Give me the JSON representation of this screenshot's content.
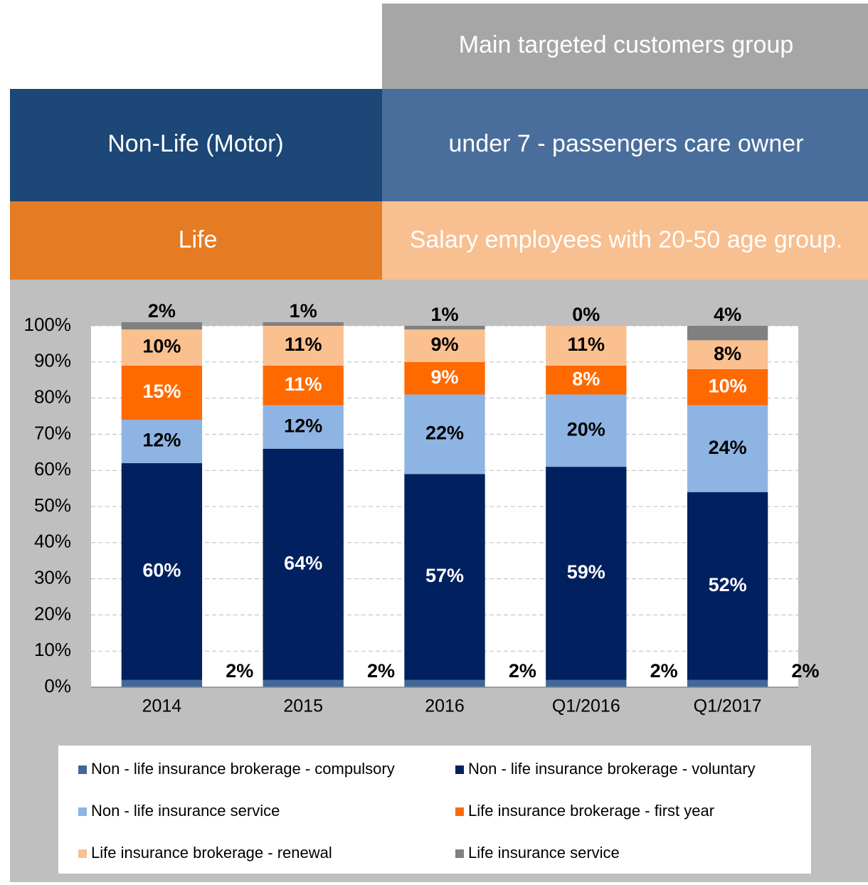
{
  "table": {
    "header": "Main targeted customers group",
    "rows": [
      [
        "Non-Life (Motor)",
        "under 7 - passengers care owner"
      ],
      [
        "Life",
        "Salary employees with 20-50 age group."
      ]
    ]
  },
  "chart_data": {
    "type": "stacked_bar",
    "categories": [
      "2014",
      "2015",
      "2016",
      "Q1/2016",
      "Q1/2017"
    ],
    "ylim": [
      0,
      100
    ],
    "yticks": [
      {
        "value": 0,
        "label": "0%"
      },
      {
        "value": 10,
        "label": "10%"
      },
      {
        "value": 20,
        "label": "20%"
      },
      {
        "value": 30,
        "label": "30%"
      },
      {
        "value": 40,
        "label": "40%"
      },
      {
        "value": 50,
        "label": "50%"
      },
      {
        "value": 60,
        "label": "60%"
      },
      {
        "value": 70,
        "label": "70%"
      },
      {
        "value": 80,
        "label": "80%"
      },
      {
        "value": 90,
        "label": "90%"
      },
      {
        "value": 100,
        "label": "100%"
      }
    ],
    "grid": true,
    "series": [
      {
        "name": "Non - life insurance brokerage - compulsory",
        "color": "#41679b",
        "values": [
          2,
          2,
          2,
          2,
          2
        ],
        "value_labels": [
          "2%",
          "2%",
          "2%",
          "2%",
          "2%"
        ]
      },
      {
        "name": "Non - life insurance brokerage - voluntary",
        "color": "#00205f",
        "values": [
          60,
          64,
          57,
          59,
          52
        ],
        "value_labels": [
          "60%",
          "64%",
          "57%",
          "59%",
          "52%"
        ]
      },
      {
        "name": "Non - life insurance service",
        "color": "#8eb4e3",
        "values": [
          12,
          12,
          22,
          20,
          24
        ],
        "value_labels": [
          "12%",
          "12%",
          "22%",
          "20%",
          "24%"
        ]
      },
      {
        "name": "Life insurance  brokerage - first year",
        "color": "#ff6a00",
        "values": [
          15,
          11,
          9,
          8,
          10
        ],
        "value_labels": [
          "15%",
          "11%",
          "9%",
          "8%",
          "10%"
        ]
      },
      {
        "name": "Life insurance  brokerage - renewal",
        "color": "#fac090",
        "values": [
          10,
          11,
          9,
          11,
          8
        ],
        "value_labels": [
          "10%",
          "11%",
          "9%",
          "11%",
          "8%"
        ]
      },
      {
        "name": "Life insurance service",
        "color": "#808080",
        "values": [
          2,
          1,
          1,
          0,
          4
        ],
        "value_labels": [
          "2%",
          "1%",
          "1%",
          "0%",
          "4%"
        ]
      }
    ]
  }
}
